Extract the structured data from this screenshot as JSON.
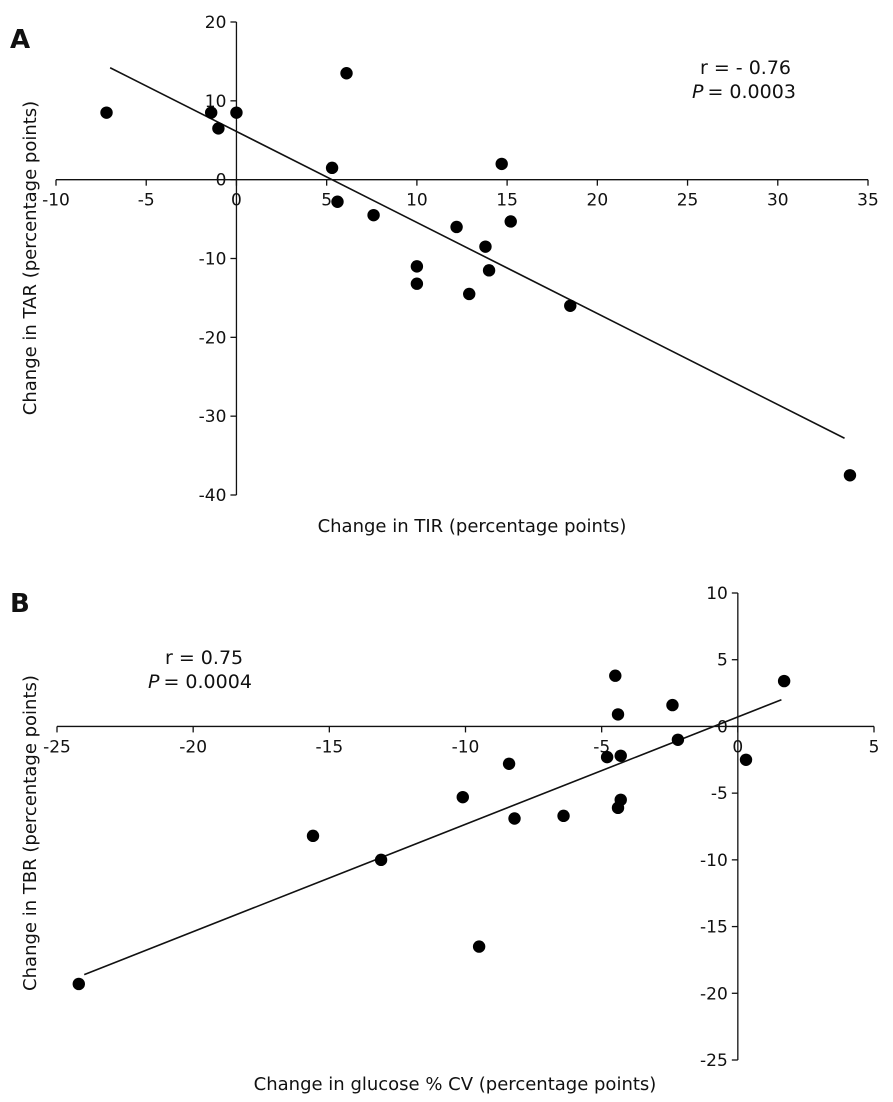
{
  "chart_data": [
    {
      "type": "scatter",
      "panel_label": "A",
      "xlabel": "Change in TIR (percentage points)",
      "ylabel": "Change in TAR (percentage points)",
      "xlim": [
        -10,
        35
      ],
      "ylim": [
        -40,
        20
      ],
      "xticks": [
        -10,
        -5,
        0,
        5,
        10,
        15,
        20,
        25,
        30,
        35
      ],
      "yticks": [
        -40,
        -30,
        -20,
        -10,
        0,
        10,
        20
      ],
      "grid": false,
      "annotation_r": "r = - 0.76",
      "annotation_p_symbol": "P",
      "annotation_p_value": "= 0.0003",
      "annotation_position": "top-right",
      "trendline": {
        "x": [
          -7,
          33.7
        ],
        "y": [
          14.2,
          -32.8
        ]
      },
      "points": [
        {
          "x": -7.2,
          "y": 8.5
        },
        {
          "x": -1.4,
          "y": 8.5
        },
        {
          "x": -1.0,
          "y": 6.5
        },
        {
          "x": 0.0,
          "y": 8.5
        },
        {
          "x": 5.3,
          "y": 1.5
        },
        {
          "x": 5.6,
          "y": -2.8
        },
        {
          "x": 6.1,
          "y": 13.5
        },
        {
          "x": 7.6,
          "y": -4.5
        },
        {
          "x": 10.0,
          "y": -11.0
        },
        {
          "x": 10.0,
          "y": -13.2
        },
        {
          "x": 12.2,
          "y": -6.0
        },
        {
          "x": 12.9,
          "y": -14.5
        },
        {
          "x": 13.8,
          "y": -8.5
        },
        {
          "x": 14.0,
          "y": -11.5
        },
        {
          "x": 14.7,
          "y": 2.0
        },
        {
          "x": 15.2,
          "y": -5.3
        },
        {
          "x": 18.5,
          "y": -16.0
        },
        {
          "x": 34.0,
          "y": -37.5
        }
      ]
    },
    {
      "type": "scatter",
      "panel_label": "B",
      "xlabel": "Change in glucose % CV (percentage points)",
      "ylabel": "Change in TBR (percentage points)",
      "xlim": [
        -25,
        5
      ],
      "ylim": [
        -25,
        10
      ],
      "xticks": [
        -25,
        -20,
        -15,
        -10,
        -5,
        0,
        5
      ],
      "yticks": [
        -25,
        -20,
        -15,
        -10,
        -5,
        0,
        5,
        10
      ],
      "grid": false,
      "annotation_r": "r = 0.75",
      "annotation_p_symbol": "P",
      "annotation_p_value": "= 0.0004",
      "annotation_position": "top-left",
      "trendline": {
        "x": [
          -24,
          1.6
        ],
        "y": [
          -18.6,
          2.0
        ]
      },
      "points": [
        {
          "x": -24.2,
          "y": -19.3
        },
        {
          "x": -15.6,
          "y": -8.2
        },
        {
          "x": -13.1,
          "y": -10.0
        },
        {
          "x": -10.1,
          "y": -5.3
        },
        {
          "x": -9.5,
          "y": -16.5
        },
        {
          "x": -8.4,
          "y": -2.8
        },
        {
          "x": -8.2,
          "y": -6.9
        },
        {
          "x": -6.4,
          "y": -6.7
        },
        {
          "x": -4.8,
          "y": -2.3
        },
        {
          "x": -4.5,
          "y": 3.8
        },
        {
          "x": -4.4,
          "y": 0.9
        },
        {
          "x": -4.4,
          "y": -6.1
        },
        {
          "x": -4.3,
          "y": -2.2
        },
        {
          "x": -4.3,
          "y": -5.5
        },
        {
          "x": -2.4,
          "y": 1.6
        },
        {
          "x": -2.2,
          "y": -1.0
        },
        {
          "x": 0.3,
          "y": -2.5
        },
        {
          "x": 1.7,
          "y": 3.4
        }
      ]
    }
  ]
}
